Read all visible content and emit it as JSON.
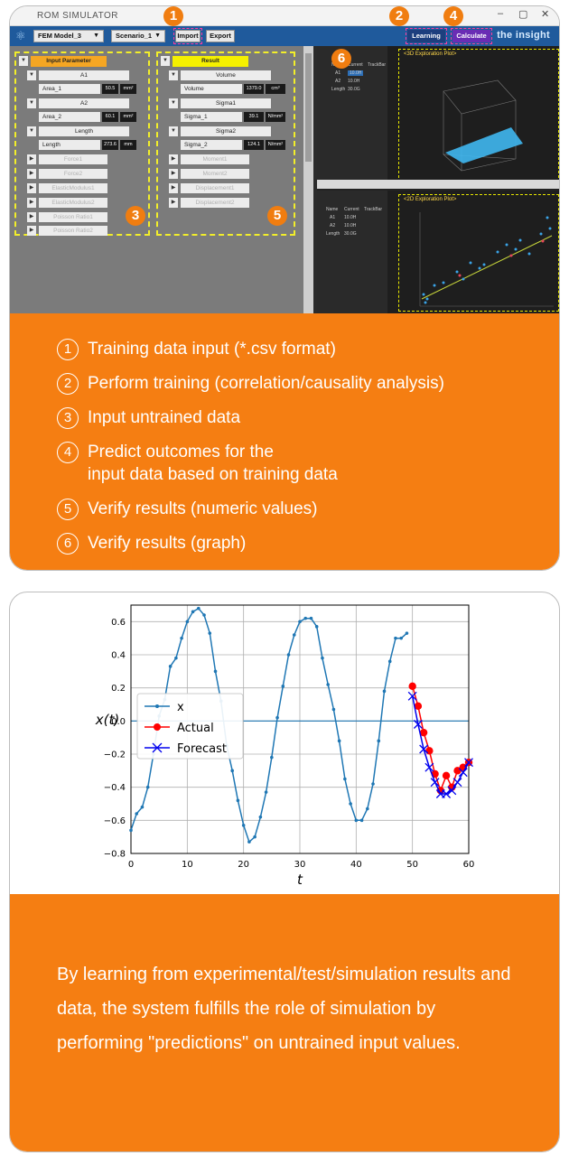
{
  "app": {
    "title": "ROM SIMULATOR",
    "brand": "the insight",
    "model_select": "FEM Model_3",
    "scenario_select": "Scenario_1",
    "import_label": "Import",
    "export_label": "Export",
    "learning_label": "Learning",
    "calculate_label": "Calculate"
  },
  "badges": [
    "1",
    "2",
    "3",
    "4",
    "5",
    "6"
  ],
  "input_panel": {
    "header": "Input Parameter",
    "groups": [
      {
        "name": "A1",
        "field": "Area_1",
        "value": "50.5",
        "unit": "mm²"
      },
      {
        "name": "A2",
        "field": "Area_2",
        "value": "60.1",
        "unit": "mm²"
      },
      {
        "name": "Length",
        "field": "Length",
        "value": "273.6",
        "unit": "mm"
      }
    ],
    "disabled": [
      "Force1",
      "Force2",
      "ElasticModulus1",
      "ElasticModulus2",
      "Poisson Ratio1",
      "Poisson Ratio2"
    ]
  },
  "result_panel": {
    "header": "Result",
    "groups": [
      {
        "name": "Volume",
        "field": "Volume",
        "value": "1379.0",
        "unit": "cm³"
      },
      {
        "name": "Sigma1",
        "field": "Sigma_1",
        "value": "39.1",
        "unit": "N/mm²"
      },
      {
        "name": "Sigma2",
        "field": "Sigma_2",
        "value": "124.1",
        "unit": "N/mm²"
      }
    ],
    "disabled": [
      "Moment1",
      "Moment2",
      "Displacement1",
      "Displacement2"
    ]
  },
  "right_pane": {
    "top_title": "<3D Exploration Plot>",
    "bottom_title": "<2D Exploration Plot>",
    "table_header": [
      "Name",
      "Current",
      "TrackBar"
    ],
    "rows": [
      {
        "name": "A1",
        "value": "10.0H"
      },
      {
        "name": "A2",
        "value": "10.0H"
      },
      {
        "name": "Length",
        "value": "30.0G"
      }
    ]
  },
  "steps": [
    {
      "num": "1",
      "text": "Training data input (*.csv format)"
    },
    {
      "num": "2",
      "text": "Perform training (correlation/causality analysis)"
    },
    {
      "num": "3",
      "text": "Input untrained data"
    },
    {
      "num": "4",
      "text": "Predict outcomes for the",
      "text2": "input data based on training data"
    },
    {
      "num": "5",
      "text": "Verify results (numeric values)"
    },
    {
      "num": "6",
      "text": "Verify results (graph)"
    }
  ],
  "description": "By learning from experimental/test/simulation results and data, the system fulfills the role of simulation by performing \"predictions\" on untrained input values.",
  "chart_data": {
    "type": "line",
    "xlabel": "t",
    "ylabel": "x(t)",
    "xlim": [
      0,
      60
    ],
    "ylim": [
      -0.8,
      0.7
    ],
    "xticks": [
      0,
      10,
      20,
      30,
      40,
      50,
      60
    ],
    "yticks": [
      -0.8,
      -0.6,
      -0.4,
      -0.2,
      0.0,
      0.2,
      0.4,
      0.6
    ],
    "grid": true,
    "legend": "left",
    "series": [
      {
        "name": "x",
        "color": "#1f77b4",
        "marker": "dot",
        "x": [
          0,
          1,
          2,
          3,
          4,
          5,
          6,
          7,
          8,
          9,
          10,
          11,
          12,
          13,
          14,
          15,
          16,
          17,
          18,
          19,
          20,
          21,
          22,
          23,
          24,
          25,
          26,
          27,
          28,
          29,
          30,
          31,
          32,
          33,
          34,
          35,
          36,
          37,
          38,
          39,
          40,
          41,
          42,
          43,
          44,
          45,
          46,
          47,
          48,
          49
        ],
        "y": [
          -0.66,
          -0.56,
          -0.52,
          -0.4,
          -0.2,
          0.03,
          0.13,
          0.33,
          0.38,
          0.5,
          0.6,
          0.66,
          0.68,
          0.64,
          0.53,
          0.3,
          0.12,
          -0.15,
          -0.3,
          -0.48,
          -0.63,
          -0.73,
          -0.7,
          -0.58,
          -0.43,
          -0.22,
          0.02,
          0.21,
          0.4,
          0.52,
          0.6,
          0.62,
          0.62,
          0.57,
          0.38,
          0.22,
          0.07,
          -0.12,
          -0.35,
          -0.5,
          -0.6,
          -0.6,
          -0.53,
          -0.38,
          -0.12,
          0.18,
          0.36,
          0.5,
          0.5,
          0.53
        ]
      },
      {
        "name": "Actual",
        "color": "#ff0000",
        "marker": "circle",
        "x": [
          50,
          51,
          52,
          53,
          54,
          55,
          56,
          57,
          58,
          59,
          60
        ],
        "y": [
          0.21,
          0.09,
          -0.07,
          -0.18,
          -0.32,
          -0.42,
          -0.33,
          -0.4,
          -0.3,
          -0.28,
          -0.25
        ]
      },
      {
        "name": "Forecast",
        "color": "#0000ee",
        "marker": "x",
        "x": [
          50,
          51,
          52,
          53,
          54,
          55,
          56,
          57,
          58,
          59,
          60
        ],
        "y": [
          0.15,
          -0.02,
          -0.17,
          -0.28,
          -0.37,
          -0.44,
          -0.44,
          -0.42,
          -0.37,
          -0.31,
          -0.25
        ]
      }
    ]
  }
}
